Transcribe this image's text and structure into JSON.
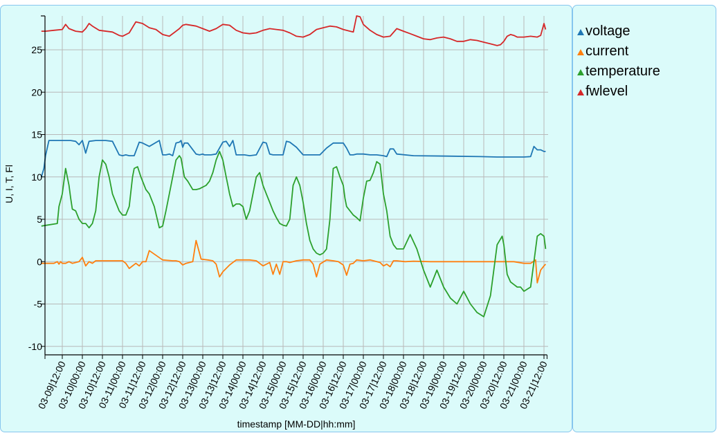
{
  "chart_data": {
    "type": "line",
    "xlabel": "timestamp [MM-DD|hh:mm]",
    "ylabel": "U, I, T, Fl",
    "ylim": [
      -11,
      29
    ],
    "yticks": [
      -10,
      -5,
      0,
      5,
      10,
      15,
      20,
      25
    ],
    "xlim": [
      -12.5,
      289
    ],
    "x_tick_labels": [
      "03-09|12:00",
      "03-10|00:00",
      "03-10|12:00",
      "03-11|00:00",
      "03-11|12:00",
      "03-12|00:00",
      "03-12|12:00",
      "03-13|00:00",
      "03-13|12:00",
      "03-14|00:00",
      "03-14|12:00",
      "03-15|00:00",
      "03-15|12:00",
      "03-16|00:00",
      "03-16|12:00",
      "03-17|00:00",
      "03-17|12:00",
      "03-18|00:00",
      "03-18|12:00",
      "03-19|00:00",
      "03-19|12:00",
      "03-20|00:00",
      "03-20|12:00",
      "03-21|00:00",
      "03-21|12:00"
    ],
    "x_tick_hours": [
      0,
      12,
      24,
      36,
      48,
      60,
      72,
      84,
      96,
      108,
      120,
      132,
      144,
      156,
      168,
      180,
      192,
      204,
      216,
      228,
      240,
      252,
      264,
      276,
      288
    ],
    "grid": true,
    "series": [
      {
        "name": "voltage",
        "color": "#1f77b4",
        "x": [
          -12.5,
          -11,
          -10,
          -8,
          -5,
          0,
          5,
          8,
          10,
          12,
          14,
          16,
          20,
          26,
          30,
          34,
          36,
          38,
          40,
          43,
          46,
          48,
          52,
          58,
          60,
          62,
          64,
          66,
          68,
          70,
          71,
          72,
          73,
          75,
          80,
          82,
          84,
          85,
          86,
          89,
          92,
          96,
          98,
          100,
          102,
          104,
          106,
          109,
          112,
          116,
          120,
          122,
          124,
          126,
          128,
          130,
          132,
          134,
          136,
          140,
          144,
          146,
          148,
          150,
          152,
          154,
          158,
          162,
          168,
          170,
          172,
          174,
          176,
          180,
          184,
          188,
          192,
          194,
          196,
          198,
          200,
          210,
          230,
          250,
          260,
          270,
          276,
          280,
          282,
          284,
          286,
          288,
          289
        ],
        "y": [
          10,
          11,
          12.5,
          14.3,
          14.3,
          14.3,
          14.3,
          14.2,
          13.8,
          14.3,
          12.8,
          14.2,
          14.3,
          14.3,
          14.2,
          12.6,
          12.5,
          12.6,
          12.5,
          12.5,
          14.1,
          14,
          13.6,
          14.3,
          12.6,
          12.6,
          12.7,
          12.5,
          14.0,
          14.1,
          14.3,
          13.5,
          14.0,
          14,
          12.7,
          12.6,
          12.7,
          12.6,
          12.6,
          12.6,
          12.7,
          14.1,
          14.2,
          13.6,
          14.3,
          12.6,
          12.6,
          12.6,
          12.5,
          12.6,
          14.1,
          14,
          12.7,
          12.6,
          12.6,
          12.6,
          12.6,
          14.2,
          14.1,
          13.5,
          12.6,
          12.6,
          12.6,
          12.6,
          12.6,
          12.6,
          13.4,
          14.0,
          14.0,
          13.4,
          12.6,
          12.6,
          12.7,
          12.7,
          12.6,
          12.6,
          12.5,
          12.4,
          13.3,
          13.3,
          12.7,
          12.5,
          12.45,
          12.4,
          12.35,
          12.35,
          12.35,
          12.4,
          13.6,
          13.2,
          13.2,
          13.0,
          13.0
        ]
      },
      {
        "name": "current",
        "color": "#ff7f0e",
        "x": [
          -12.5,
          -5,
          -3,
          -2,
          -1,
          0,
          2,
          4,
          6,
          10,
          12,
          14,
          16,
          18,
          20,
          25,
          30,
          36,
          38,
          40,
          42,
          44,
          46,
          48,
          50,
          52,
          60,
          66,
          68,
          70,
          72,
          74,
          78,
          80,
          83,
          87,
          90,
          92,
          94,
          96,
          100,
          104,
          108,
          112,
          116,
          120,
          124,
          126,
          128,
          130,
          132,
          134,
          136,
          140,
          144,
          148,
          150,
          152,
          154,
          158,
          162,
          165,
          168,
          170,
          172,
          174,
          176,
          180,
          184,
          190,
          192,
          194,
          196,
          198,
          200,
          205,
          210,
          220,
          230,
          240,
          250,
          260,
          266,
          270,
          276,
          280,
          283,
          284,
          286,
          288,
          289
        ],
        "y": [
          -0.2,
          -0.2,
          0,
          -0.3,
          0,
          -0.2,
          -0.2,
          0,
          -0.2,
          0,
          0.5,
          -0.5,
          0,
          -0.2,
          0.1,
          0.1,
          0.1,
          0.1,
          -0.2,
          -0.8,
          -0.5,
          -0.2,
          -0.5,
          0,
          0,
          1.3,
          0.2,
          0.1,
          0.1,
          0,
          -0.4,
          -0.2,
          0,
          2.5,
          0.3,
          0.2,
          0.1,
          -0.3,
          -1.8,
          -1.2,
          -0.4,
          0.2,
          0.2,
          0.2,
          0.1,
          -0.5,
          -0.1,
          -1.5,
          -0.3,
          -1.5,
          0,
          0,
          -0.1,
          0.1,
          0.2,
          0.2,
          -0.3,
          -1.8,
          -0.3,
          0.2,
          0.1,
          0,
          -0.4,
          -1.6,
          -0.3,
          -0.2,
          0.2,
          0.1,
          0.2,
          -0.1,
          -0.5,
          -0.3,
          -0.6,
          0.1,
          0.1,
          0.0,
          0.05,
          0,
          0,
          0,
          0,
          0,
          0,
          0,
          -0.2,
          -0.2,
          0.2,
          -2.5,
          -1,
          -0.5,
          -0.3
        ]
      },
      {
        "name": "temperature",
        "color": "#2ca02c",
        "x": [
          -12.5,
          -3,
          -2,
          0,
          2,
          4,
          5,
          6,
          8,
          10,
          12,
          14,
          16,
          18,
          20,
          22,
          24,
          26,
          28,
          30,
          32,
          34,
          36,
          38,
          40,
          42,
          43,
          45,
          47,
          50,
          52,
          55,
          58,
          60,
          62,
          65,
          68,
          70,
          71,
          73,
          75,
          78,
          80,
          82,
          84,
          86,
          88,
          90,
          92,
          94,
          96,
          98,
          99,
          100,
          102,
          104,
          106,
          108,
          110,
          112,
          114,
          116,
          118,
          120,
          122,
          124,
          126,
          128,
          130,
          132,
          134,
          136,
          138,
          140,
          142,
          144,
          146,
          148,
          150,
          152,
          154,
          156,
          158,
          160,
          162,
          164,
          166,
          168,
          169,
          170,
          172,
          174,
          176,
          178,
          180,
          182,
          184,
          186,
          188,
          190,
          192,
          194,
          196,
          198,
          200,
          204,
          208,
          212,
          216,
          220,
          224,
          228,
          232,
          236,
          240,
          244,
          248,
          252,
          256,
          260,
          263,
          264,
          266,
          268,
          270,
          272,
          274,
          276,
          280,
          284,
          286,
          288,
          289
        ],
        "y": [
          4.2,
          4.5,
          6.5,
          8,
          11,
          9,
          7.5,
          6.2,
          6,
          5,
          4.5,
          4.5,
          4,
          4.5,
          6,
          10,
          12,
          11.5,
          10,
          8,
          7,
          6,
          5.5,
          5.5,
          6.5,
          10,
          11,
          11.2,
          10,
          8.5,
          8,
          6.5,
          4,
          4.2,
          6,
          9,
          12,
          12.5,
          12.2,
          10,
          9.5,
          8.5,
          8.5,
          8.6,
          8.8,
          9,
          9.5,
          10.5,
          12,
          13,
          12,
          10,
          9,
          8,
          6.5,
          6.8,
          6.8,
          6.5,
          5,
          6,
          8,
          10,
          10.5,
          9,
          8,
          7,
          6,
          5.2,
          4.5,
          4.3,
          4.2,
          5,
          9,
          10,
          9,
          7,
          4.5,
          2.5,
          1.5,
          1,
          0.8,
          1,
          1.5,
          5,
          11,
          11.2,
          10,
          9,
          7.5,
          6.5,
          6,
          5.5,
          5.2,
          4.8,
          7.5,
          9.5,
          9.6,
          10.5,
          11.8,
          11.5,
          8,
          6,
          3,
          2,
          1.5,
          1.5,
          3.2,
          1.5,
          -1,
          -3,
          -1,
          -3,
          -4.3,
          -5,
          -3.5,
          -5,
          -6,
          -6.5,
          -4,
          2,
          3,
          2,
          -1.5,
          -2.4,
          -2.7,
          -3,
          -3,
          -3.5,
          -3,
          3,
          3.3,
          3,
          1.5
        ]
      },
      {
        "name": "fwlevel",
        "color": "#d62728",
        "x": [
          -12.5,
          -10,
          -5,
          0,
          2,
          4,
          8,
          12,
          14,
          16,
          18,
          22,
          30,
          34,
          36,
          40,
          44,
          48,
          52,
          56,
          60,
          64,
          70,
          72,
          74,
          80,
          84,
          88,
          92,
          96,
          100,
          104,
          108,
          112,
          116,
          120,
          124,
          128,
          132,
          136,
          140,
          144,
          148,
          152,
          156,
          160,
          164,
          168,
          172,
          174,
          176,
          178,
          180,
          184,
          188,
          192,
          196,
          200,
          204,
          208,
          212,
          216,
          220,
          224,
          228,
          232,
          236,
          240,
          244,
          248,
          252,
          256,
          260,
          262,
          264,
          266,
          268,
          270,
          272,
          276,
          280,
          284,
          286,
          288,
          289
        ],
        "y": [
          27.2,
          27.2,
          27.3,
          27.4,
          28,
          27.5,
          27.2,
          27.1,
          27.5,
          28.1,
          27.8,
          27.3,
          27.1,
          26.7,
          26.6,
          27,
          28.3,
          28.1,
          27.6,
          27.4,
          26.8,
          26.6,
          27.5,
          27.9,
          28,
          27.8,
          27.5,
          27.2,
          27.5,
          28.0,
          27.9,
          27.3,
          27,
          26.9,
          27,
          27.3,
          27.5,
          27.4,
          27.3,
          27.0,
          26.6,
          26.5,
          26.8,
          27.4,
          27.6,
          27.8,
          27.7,
          27.4,
          27.2,
          27.1,
          29,
          28.9,
          28,
          27.3,
          26.8,
          26.5,
          26.6,
          27.5,
          27.2,
          26.9,
          26.6,
          26.3,
          26.2,
          26.4,
          26.5,
          26.3,
          26.0,
          26.0,
          26.2,
          26.1,
          25.9,
          25.7,
          25.5,
          25.6,
          26.0,
          26.6,
          26.8,
          26.7,
          26.5,
          26.5,
          26.6,
          26.5,
          26.7,
          28.1,
          27.4
        ]
      }
    ]
  }
}
